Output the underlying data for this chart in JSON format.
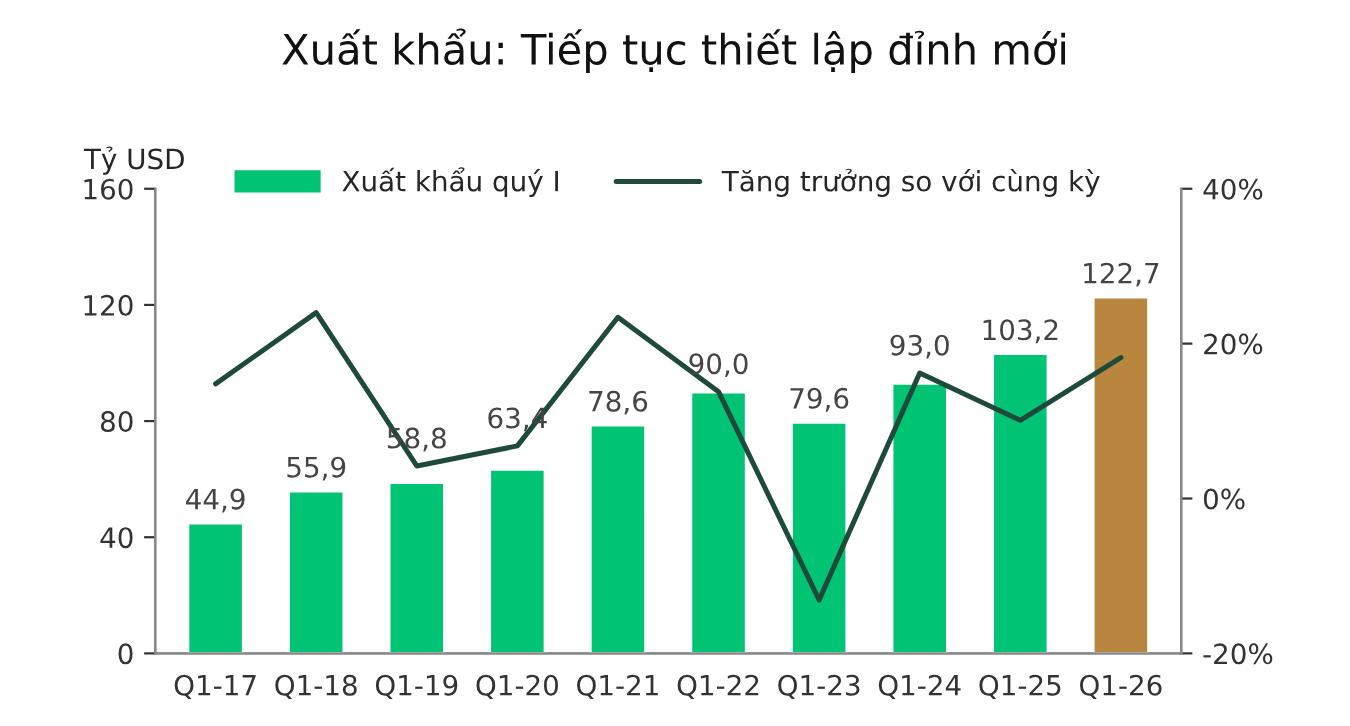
{
  "chart_data": {
    "type": "bar",
    "title": "Xuất khẩu: Tiếp tục thiết lập đỉnh mới",
    "ylabel": "Tỷ USD",
    "categories": [
      "Q1-17",
      "Q1-18",
      "Q1-19",
      "Q1-20",
      "Q1-21",
      "Q1-22",
      "Q1-23",
      "Q1-24",
      "Q1-25",
      "Q1-26"
    ],
    "series": [
      {
        "name": "Xuất khẩu quý I",
        "type": "bar",
        "colors": [
          "#00c373",
          "#00c373",
          "#00c373",
          "#00c373",
          "#00c373",
          "#00c373",
          "#00c373",
          "#00c373",
          "#00c373",
          "#b8863e"
        ],
        "color": "#00c373",
        "values": [
          44.9,
          55.9,
          58.8,
          63.4,
          78.6,
          90.0,
          79.6,
          93.0,
          103.2,
          122.7
        ],
        "value_labels": [
          "44,9",
          "55,9",
          "58,8",
          "63,4",
          "78,6",
          "90,0",
          "79,6",
          "93,0",
          "103,2",
          "122,7"
        ]
      },
      {
        "name": "Tăng trưởng so với cùng kỳ",
        "type": "line",
        "axis": "y2",
        "color": "#1f4a3a",
        "values": [
          14.8,
          24.0,
          4.2,
          6.8,
          23.4,
          13.8,
          -13.1,
          16.2,
          10.1,
          18.2
        ]
      }
    ],
    "ylim": [
      0,
      160
    ],
    "yticks": [
      0,
      40,
      80,
      120,
      160
    ],
    "y2lim": [
      -20,
      40
    ],
    "y2ticks": [
      {
        "value": -20,
        "label": "-20%"
      },
      {
        "value": 0,
        "label": "0%"
      },
      {
        "value": 20,
        "label": "20%"
      },
      {
        "value": 40,
        "label": "40%"
      }
    ],
    "legend": "top",
    "grid": false
  }
}
